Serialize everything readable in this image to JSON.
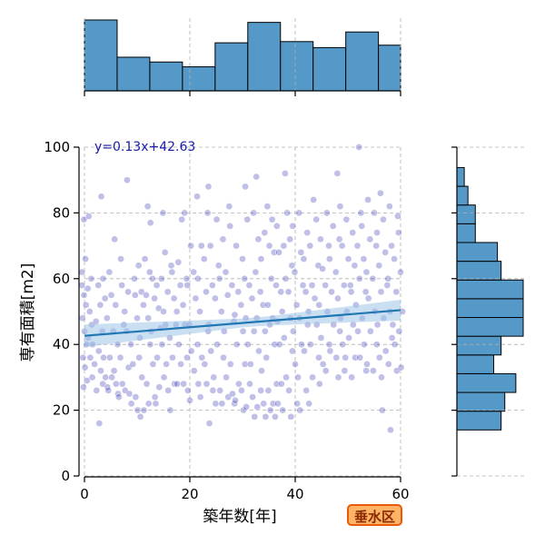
{
  "chart_data": {
    "type": "scatter",
    "xlabel": "築年数[年]",
    "ylabel": "専有面積[m2]",
    "xlim": [
      0,
      60
    ],
    "ylim": [
      0,
      100
    ],
    "xticks": [
      0,
      20,
      40,
      60
    ],
    "yticks": [
      0,
      20,
      40,
      60,
      80,
      100
    ],
    "grid": true,
    "equation": "y=0.13x+42.63",
    "regression": {
      "slope": 0.13,
      "intercept": 42.63,
      "x_range": [
        0,
        60
      ]
    },
    "badge": "垂水区",
    "colors": {
      "points": "#3838b8",
      "regression_line": "#1f77b4",
      "band": "#9ec5e6",
      "histogram": "#5599c8",
      "equation": "#1a1aa8",
      "badge_fill": "#ffb366",
      "badge_border": "#e8590c",
      "badge_text": "#8a2a00"
    },
    "x_histogram": {
      "bin_width": 6.2,
      "bins_start": 0,
      "counts": [
        59,
        28,
        24,
        20,
        40,
        57,
        41,
        36,
        49,
        38
      ]
    },
    "y_histogram": {
      "bin_width": 5.7,
      "bins_start": 14,
      "counts": [
        12,
        13,
        16,
        10,
        12,
        18,
        18,
        18,
        12,
        11,
        5,
        5,
        3,
        2,
        0,
        0
      ]
    },
    "points": [
      [
        0,
        58
      ],
      [
        0,
        55
      ],
      [
        0,
        52
      ],
      [
        0,
        48
      ],
      [
        0,
        44
      ],
      [
        0,
        40
      ],
      [
        0,
        36
      ],
      [
        0,
        33
      ],
      [
        0,
        29
      ],
      [
        0,
        27
      ],
      [
        0,
        66
      ],
      [
        0,
        62
      ],
      [
        0,
        78
      ],
      [
        1,
        60
      ],
      [
        1,
        57
      ],
      [
        1,
        50
      ],
      [
        1,
        46
      ],
      [
        1,
        42
      ],
      [
        1,
        36
      ],
      [
        1,
        30
      ],
      [
        1,
        79
      ],
      [
        2,
        47
      ],
      [
        2,
        40
      ],
      [
        2,
        34
      ],
      [
        2,
        26
      ],
      [
        3,
        58
      ],
      [
        3,
        52
      ],
      [
        3,
        44
      ],
      [
        3,
        38
      ],
      [
        3,
        32
      ],
      [
        3,
        28
      ],
      [
        3,
        16
      ],
      [
        3,
        85
      ],
      [
        4,
        60
      ],
      [
        4,
        54
      ],
      [
        4,
        48
      ],
      [
        4,
        36
      ],
      [
        4,
        30
      ],
      [
        4,
        27
      ],
      [
        5,
        62
      ],
      [
        5,
        55
      ],
      [
        5,
        44
      ],
      [
        5,
        36
      ],
      [
        5,
        30
      ],
      [
        5,
        26
      ],
      [
        6,
        52
      ],
      [
        6,
        40
      ],
      [
        6,
        32
      ],
      [
        6,
        28
      ],
      [
        6,
        25
      ],
      [
        6,
        72
      ],
      [
        7,
        58
      ],
      [
        7,
        46
      ],
      [
        7,
        36
      ],
      [
        7,
        28
      ],
      [
        7,
        24
      ],
      [
        7,
        66
      ],
      [
        8,
        56
      ],
      [
        8,
        50
      ],
      [
        8,
        44
      ],
      [
        8,
        33
      ],
      [
        8,
        26
      ],
      [
        8,
        90
      ],
      [
        9,
        60
      ],
      [
        9,
        40
      ],
      [
        9,
        34
      ],
      [
        9,
        25
      ],
      [
        9,
        22
      ],
      [
        10,
        64
      ],
      [
        10,
        55
      ],
      [
        10,
        48
      ],
      [
        10,
        36
      ],
      [
        10,
        24
      ],
      [
        10,
        20
      ],
      [
        11,
        66
      ],
      [
        11,
        56
      ],
      [
        11,
        52
      ],
      [
        11,
        42
      ],
      [
        11,
        30
      ],
      [
        11,
        20
      ],
      [
        11,
        18
      ],
      [
        12,
        82
      ],
      [
        12,
        62
      ],
      [
        12,
        55
      ],
      [
        12,
        48
      ],
      [
        12,
        40
      ],
      [
        12,
        28
      ],
      [
        12,
        22
      ],
      [
        13,
        77
      ],
      [
        13,
        60
      ],
      [
        13,
        54
      ],
      [
        13,
        44
      ],
      [
        13,
        34
      ],
      [
        13,
        24
      ],
      [
        14,
        58
      ],
      [
        14,
        51
      ],
      [
        14,
        45
      ],
      [
        14,
        36
      ],
      [
        14,
        27
      ],
      [
        14,
        22
      ],
      [
        15,
        80
      ],
      [
        15,
        68
      ],
      [
        15,
        60
      ],
      [
        15,
        50
      ],
      [
        15,
        46
      ],
      [
        15,
        40
      ],
      [
        15,
        30
      ],
      [
        16,
        64
      ],
      [
        16,
        56
      ],
      [
        16,
        42
      ],
      [
        16,
        34
      ],
      [
        16,
        26
      ],
      [
        16,
        20
      ],
      [
        17,
        62
      ],
      [
        17,
        54
      ],
      [
        17,
        46
      ],
      [
        17,
        36
      ],
      [
        17,
        28
      ],
      [
        18,
        78
      ],
      [
        18,
        65
      ],
      [
        18,
        58
      ],
      [
        18,
        50
      ],
      [
        18,
        40
      ],
      [
        18,
        34
      ],
      [
        18,
        28
      ],
      [
        19,
        80
      ],
      [
        19,
        60
      ],
      [
        19,
        52
      ],
      [
        19,
        46
      ],
      [
        19,
        36
      ],
      [
        19,
        28
      ],
      [
        20,
        70
      ],
      [
        20,
        58
      ],
      [
        20,
        46
      ],
      [
        20,
        38
      ],
      [
        20,
        26
      ],
      [
        20,
        23
      ],
      [
        21,
        85
      ],
      [
        21,
        62
      ],
      [
        21,
        54
      ],
      [
        21,
        40
      ],
      [
        21,
        32
      ],
      [
        22,
        70
      ],
      [
        22,
        60
      ],
      [
        22,
        50
      ],
      [
        22,
        36
      ],
      [
        22,
        28
      ],
      [
        22,
        24
      ],
      [
        23,
        80
      ],
      [
        23,
        66
      ],
      [
        23,
        56
      ],
      [
        23,
        44
      ],
      [
        23,
        34
      ],
      [
        23,
        28
      ],
      [
        24,
        88
      ],
      [
        24,
        70
      ],
      [
        24,
        58
      ],
      [
        24,
        46
      ],
      [
        24,
        38
      ],
      [
        24,
        26
      ],
      [
        24,
        16
      ],
      [
        25,
        78
      ],
      [
        25,
        64
      ],
      [
        25,
        54
      ],
      [
        25,
        40
      ],
      [
        25,
        30
      ],
      [
        25,
        22
      ],
      [
        26,
        72
      ],
      [
        26,
        60
      ],
      [
        26,
        50
      ],
      [
        26,
        36
      ],
      [
        26,
        26
      ],
      [
        26,
        22
      ],
      [
        27,
        82
      ],
      [
        27,
        62
      ],
      [
        27,
        55
      ],
      [
        27,
        44
      ],
      [
        27,
        30
      ],
      [
        27,
        24
      ],
      [
        28,
        76
      ],
      [
        28,
        58
      ],
      [
        28,
        47
      ],
      [
        28,
        34
      ],
      [
        28,
        25
      ],
      [
        28,
        22
      ],
      [
        29,
        70
      ],
      [
        29,
        56
      ],
      [
        29,
        49
      ],
      [
        29,
        40
      ],
      [
        29,
        28
      ],
      [
        29,
        23
      ],
      [
        30,
        66
      ],
      [
        30,
        60
      ],
      [
        30,
        52
      ],
      [
        30,
        44
      ],
      [
        30,
        34
      ],
      [
        30,
        26
      ],
      [
        30,
        20
      ],
      [
        31,
        88
      ],
      [
        31,
        78
      ],
      [
        31,
        58
      ],
      [
        31,
        48
      ],
      [
        31,
        40
      ],
      [
        31,
        28
      ],
      [
        31,
        21
      ],
      [
        32,
        80
      ],
      [
        32,
        62
      ],
      [
        32,
        54
      ],
      [
        32,
        44
      ],
      [
        32,
        34
      ],
      [
        32,
        24
      ],
      [
        32,
        18
      ],
      [
        33,
        91
      ],
      [
        33,
        72
      ],
      [
        33,
        56
      ],
      [
        33,
        48
      ],
      [
        33,
        38
      ],
      [
        33,
        26
      ],
      [
        33,
        21
      ],
      [
        34,
        74
      ],
      [
        34,
        66
      ],
      [
        34,
        52
      ],
      [
        34,
        44
      ],
      [
        34,
        32
      ],
      [
        34,
        22
      ],
      [
        34,
        18
      ],
      [
        35,
        82
      ],
      [
        35,
        70
      ],
      [
        35,
        60
      ],
      [
        35,
        52
      ],
      [
        35,
        46
      ],
      [
        35,
        36
      ],
      [
        35,
        26
      ],
      [
        35,
        20
      ],
      [
        36,
        78
      ],
      [
        36,
        68
      ],
      [
        36,
        58
      ],
      [
        36,
        48
      ],
      [
        36,
        40
      ],
      [
        36,
        28
      ],
      [
        36,
        22
      ],
      [
        36,
        18
      ],
      [
        37,
        76
      ],
      [
        37,
        68
      ],
      [
        37,
        56
      ],
      [
        37,
        47
      ],
      [
        37,
        40
      ],
      [
        37,
        28
      ],
      [
        37,
        22
      ],
      [
        38,
        92
      ],
      [
        38,
        80
      ],
      [
        38,
        70
      ],
      [
        38,
        60
      ],
      [
        38,
        50
      ],
      [
        38,
        42
      ],
      [
        38,
        30
      ],
      [
        38,
        20
      ],
      [
        39,
        72
      ],
      [
        39,
        64
      ],
      [
        39,
        56
      ],
      [
        39,
        48
      ],
      [
        39,
        38
      ],
      [
        39,
        26
      ],
      [
        39,
        18
      ],
      [
        40,
        76
      ],
      [
        40,
        62
      ],
      [
        40,
        52
      ],
      [
        40,
        44
      ],
      [
        40,
        34
      ],
      [
        40,
        22
      ],
      [
        41,
        80
      ],
      [
        41,
        68
      ],
      [
        41,
        58
      ],
      [
        41,
        48
      ],
      [
        41,
        40
      ],
      [
        41,
        30
      ],
      [
        41,
        20
      ],
      [
        42,
        74
      ],
      [
        42,
        66
      ],
      [
        42,
        56
      ],
      [
        42,
        46
      ],
      [
        42,
        38
      ],
      [
        42,
        26
      ],
      [
        43,
        84
      ],
      [
        43,
        70
      ],
      [
        43,
        58
      ],
      [
        43,
        50
      ],
      [
        43,
        40
      ],
      [
        43,
        30
      ],
      [
        43,
        22
      ],
      [
        44,
        78
      ],
      [
        44,
        64
      ],
      [
        44,
        54
      ],
      [
        44,
        46
      ],
      [
        44,
        36
      ],
      [
        45,
        72
      ],
      [
        45,
        63
      ],
      [
        45,
        52
      ],
      [
        45,
        42
      ],
      [
        45,
        34
      ],
      [
        45,
        28
      ],
      [
        46,
        80
      ],
      [
        46,
        70
      ],
      [
        46,
        58
      ],
      [
        46,
        50
      ],
      [
        46,
        40
      ],
      [
        46,
        32
      ],
      [
        47,
        76
      ],
      [
        47,
        66
      ],
      [
        47,
        56
      ],
      [
        47,
        46
      ],
      [
        47,
        38
      ],
      [
        48,
        92
      ],
      [
        48,
        72
      ],
      [
        48,
        62
      ],
      [
        48,
        54
      ],
      [
        48,
        44
      ],
      [
        48,
        36
      ],
      [
        48,
        30
      ],
      [
        49,
        82
      ],
      [
        49,
        70
      ],
      [
        49,
        58
      ],
      [
        49,
        48
      ],
      [
        49,
        40
      ],
      [
        49,
        32
      ],
      [
        50,
        78
      ],
      [
        50,
        66
      ],
      [
        50,
        58
      ],
      [
        50,
        50
      ],
      [
        50,
        42
      ],
      [
        50,
        36
      ],
      [
        51,
        74
      ],
      [
        51,
        64
      ],
      [
        51,
        56
      ],
      [
        51,
        46
      ],
      [
        51,
        36
      ],
      [
        51,
        30
      ],
      [
        52,
        100
      ],
      [
        52,
        80
      ],
      [
        52,
        70
      ],
      [
        52,
        60
      ],
      [
        52,
        52
      ],
      [
        52,
        44
      ],
      [
        52,
        36
      ],
      [
        53,
        76
      ],
      [
        53,
        66
      ],
      [
        53,
        56
      ],
      [
        53,
        48
      ],
      [
        53,
        40
      ],
      [
        53,
        32
      ],
      [
        54,
        84
      ],
      [
        54,
        72
      ],
      [
        54,
        62
      ],
      [
        54,
        54
      ],
      [
        54,
        44
      ],
      [
        54,
        34
      ],
      [
        55,
        80
      ],
      [
        55,
        70
      ],
      [
        55,
        60
      ],
      [
        55,
        50
      ],
      [
        55,
        40
      ],
      [
        55,
        32
      ],
      [
        56,
        86
      ],
      [
        56,
        74
      ],
      [
        56,
        64
      ],
      [
        56,
        56
      ],
      [
        56,
        46
      ],
      [
        56,
        36
      ],
      [
        56,
        30
      ],
      [
        57,
        78
      ],
      [
        57,
        68
      ],
      [
        57,
        58
      ],
      [
        57,
        48
      ],
      [
        57,
        38
      ],
      [
        57,
        20
      ],
      [
        58,
        82
      ],
      [
        58,
        70
      ],
      [
        58,
        60
      ],
      [
        58,
        50
      ],
      [
        58,
        42
      ],
      [
        58,
        34
      ],
      [
        58,
        14
      ],
      [
        59,
        79
      ],
      [
        59,
        66
      ],
      [
        59,
        56
      ],
      [
        59,
        46
      ],
      [
        59,
        40
      ],
      [
        59,
        32
      ],
      [
        60,
        74
      ],
      [
        60,
        62
      ],
      [
        60,
        50
      ],
      [
        60,
        44
      ],
      [
        60,
        33
      ]
    ]
  }
}
